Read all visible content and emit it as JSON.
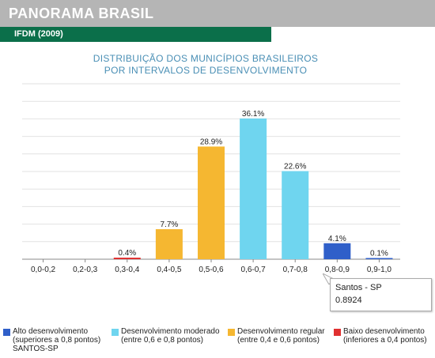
{
  "header": {
    "title": "PANORAMA BRASIL",
    "subtitle": "IFDM (2009)"
  },
  "chart_data": {
    "type": "bar",
    "title": [
      "DISTRIBUIÇÃO DOS MUNICÍPIOS BRASILEIROS",
      "POR INTERVALOS DE DESENVOLVIMENTO"
    ],
    "categories": [
      "0,0-0,2",
      "0,2-0,3",
      "0,3-0,4",
      "0,4-0,5",
      "0,5-0,6",
      "0,6-0,7",
      "0,7-0,8",
      "0,8-0,9",
      "0,9-1,0"
    ],
    "values": [
      0,
      0,
      0.4,
      7.7,
      28.9,
      36.1,
      22.6,
      4.1,
      0.1
    ],
    "data_labels": [
      "",
      "",
      "0.4%",
      "7.7%",
      "28.9%",
      "36.1%",
      "22.6%",
      "4.1%",
      "0.1%"
    ],
    "bar_colors": [
      "#e03030",
      "#e03030",
      "#e03030",
      "#f5b731",
      "#f5b731",
      "#6fd5ef",
      "#6fd5ef",
      "#2f5fc9",
      "#2f5fc9"
    ],
    "ylim": [
      0,
      45
    ],
    "grid": true,
    "legend_position": "bottom"
  },
  "tooltip": {
    "name": "Santos - SP",
    "value": "0.8924"
  },
  "legend": [
    {
      "color": "#2f5fc9",
      "line1": "Alto desenvolvimento",
      "line2": "(superiores a 0,8 pontos)",
      "extra": "SANTOS-SP"
    },
    {
      "color": "#6fd5ef",
      "line1": "Desenvolvimento moderado",
      "line2": "(entre 0,6 e 0,8 pontos)"
    },
    {
      "color": "#f5b731",
      "line1": "Desenvolvimento regular",
      "line2": "(entre 0,4 e 0,6 pontos)"
    },
    {
      "color": "#e03030",
      "line1": "Baixo desenvolvimento",
      "line2": "(inferiores a 0,4 pontos)"
    }
  ]
}
